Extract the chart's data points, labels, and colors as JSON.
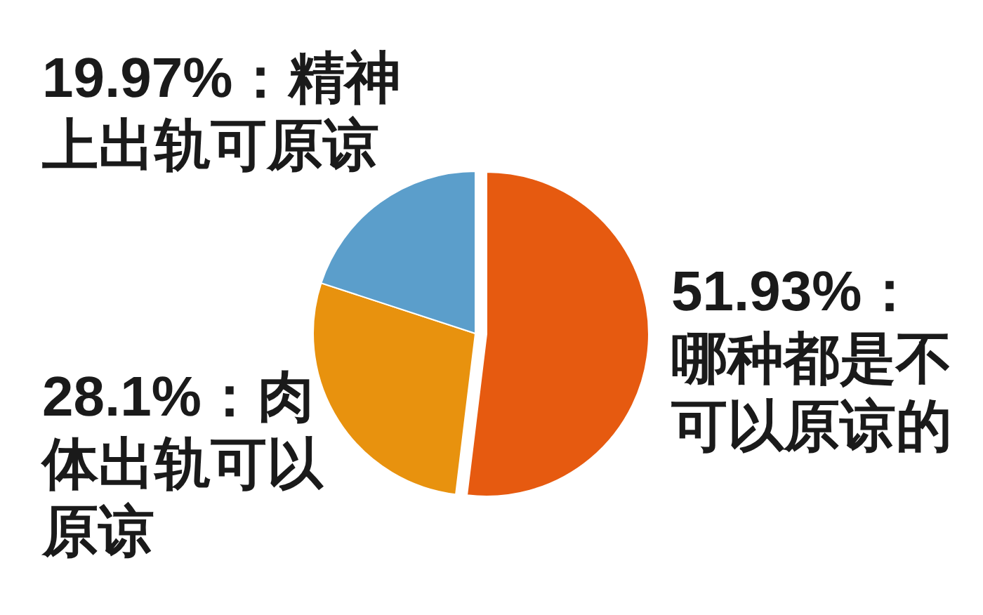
{
  "chart_data": {
    "type": "pie",
    "categories": [
      "哪种都是不可以原谅的",
      "肉体出轨可以原谅",
      "精神上出轨可原谅"
    ],
    "values": [
      51.93,
      28.1,
      19.97
    ],
    "colors": [
      "#e65a10",
      "#e8920e",
      "#5b9ecb"
    ],
    "value_labels": [
      "51.93%：",
      "28.1%：",
      "19.97%："
    ]
  }
}
